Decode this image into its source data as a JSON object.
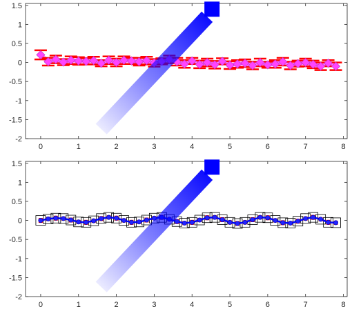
{
  "chart_data": [
    {
      "type": "line",
      "title": "",
      "xlabel": "",
      "ylabel": "",
      "xlim": [
        -0.4,
        8.1
      ],
      "ylim": [
        -2,
        1.55
      ],
      "xticks": [
        0,
        1,
        2,
        3,
        4,
        5,
        6,
        7,
        8
      ],
      "yticks": [
        -2,
        -1.5,
        -1,
        -0.5,
        0,
        0.5,
        1,
        1.5
      ],
      "xtick_labels": [
        "0",
        "1",
        "2",
        "3",
        "4",
        "5",
        "6",
        "7",
        "8"
      ],
      "ytick_labels": [
        "-2",
        "-1.5",
        "-1",
        "-0.5",
        "0",
        "0.5",
        "1",
        "1.5"
      ],
      "grid": false,
      "series": [
        {
          "style": "errorbar with magenta diamond markers",
          "x": [
            0,
            0.2,
            0.4,
            0.6,
            0.8,
            1,
            1.2,
            1.4,
            1.6,
            1.8,
            2,
            2.2,
            2.4,
            2.6,
            2.8,
            3,
            3.2,
            3.4,
            3.6,
            3.8,
            4,
            4.2,
            4.4,
            4.6,
            4.8,
            5,
            5.2,
            5.4,
            5.6,
            5.8,
            6,
            6.2,
            6.4,
            6.6,
            6.8,
            7,
            7.2,
            7.4,
            7.6,
            7.8
          ],
          "y": [
            0.2,
            0.02,
            0.08,
            0.01,
            0.06,
            0.04,
            0.03,
            0.05,
            -0.02,
            0.06,
            0.0,
            0.06,
            0.04,
            0.02,
            0.05,
            -0.01,
            0.03,
            0.08,
            0.02,
            -0.04,
            0.04,
            -0.05,
            0.0,
            -0.06,
            0.03,
            -0.07,
            -0.04,
            -0.02,
            -0.08,
            0.0,
            -0.06,
            -0.04,
            0.02,
            -0.08,
            -0.03,
            0.0,
            -0.05,
            -0.1,
            -0.02,
            -0.1
          ],
          "error": [
            0.12,
            0.1,
            0.1,
            0.08,
            0.1,
            0.1,
            0.08,
            0.1,
            0.08,
            0.1,
            0.1,
            0.1,
            0.08,
            0.1,
            0.1,
            0.1,
            0.08,
            0.1,
            0.1,
            0.1,
            0.08,
            0.1,
            0.1,
            0.1,
            0.08,
            0.1,
            0.1,
            0.1,
            0.1,
            0.1,
            0.08,
            0.1,
            0.1,
            0.1,
            0.08,
            0.1,
            0.1,
            0.1,
            0.08,
            0.1
          ],
          "line_color": "#ff66ff",
          "marker_color": "#ff44ff",
          "error_color": "#ff0000"
        }
      ],
      "annotation": {
        "shape": "arrow",
        "color": "#0000ff",
        "from": [
          1.6,
          -1.75
        ],
        "to": [
          4.4,
          1.2
        ],
        "fade": "gradient from transparent tail to solid square head"
      }
    },
    {
      "type": "line",
      "title": "",
      "xlabel": "",
      "ylabel": "",
      "xlim": [
        -0.4,
        8.1
      ],
      "ylim": [
        -2,
        1.55
      ],
      "xticks": [
        0,
        1,
        2,
        3,
        4,
        5,
        6,
        7,
        8
      ],
      "yticks": [
        -2,
        -1.5,
        -1,
        -0.5,
        0,
        0.5,
        1,
        1.5
      ],
      "xtick_labels": [
        "0",
        "1",
        "2",
        "3",
        "4",
        "5",
        "6",
        "7",
        "8"
      ],
      "ytick_labels": [
        "-2",
        "-1.5",
        "-1",
        "-0.5",
        "0",
        "0.5",
        "1",
        "1.5"
      ],
      "grid": false,
      "series": [
        {
          "style": "blue wavy line with blue circle markers, red error bars and black square outlines",
          "x": [
            0,
            0.2,
            0.4,
            0.6,
            0.8,
            1,
            1.2,
            1.4,
            1.6,
            1.8,
            2,
            2.2,
            2.4,
            2.6,
            2.8,
            3,
            3.2,
            3.4,
            3.6,
            3.8,
            4,
            4.2,
            4.4,
            4.6,
            4.8,
            5,
            5.2,
            5.4,
            5.6,
            5.8,
            6,
            6.2,
            6.4,
            6.6,
            6.8,
            7,
            7.2,
            7.4,
            7.6,
            7.8
          ],
          "y": [
            0.0,
            0.04,
            0.06,
            0.05,
            0.01,
            -0.04,
            -0.05,
            -0.01,
            0.05,
            0.08,
            0.06,
            0.0,
            -0.05,
            -0.04,
            0.01,
            0.06,
            0.08,
            0.03,
            -0.03,
            -0.07,
            -0.05,
            0.01,
            0.07,
            0.08,
            0.02,
            -0.05,
            -0.08,
            -0.05,
            0.02,
            0.08,
            0.07,
            0.0,
            -0.06,
            -0.07,
            -0.02,
            0.05,
            0.08,
            0.03,
            -0.05,
            -0.06
          ],
          "error": [
            0.05,
            0.04,
            0.05,
            0.04,
            0.05,
            0.04,
            0.05,
            0.04,
            0.05,
            0.04,
            0.05,
            0.04,
            0.05,
            0.04,
            0.05,
            0.04,
            0.05,
            0.04,
            0.05,
            0.04,
            0.05,
            0.04,
            0.05,
            0.04,
            0.05,
            0.04,
            0.05,
            0.04,
            0.05,
            0.04,
            0.05,
            0.04,
            0.05,
            0.04,
            0.05,
            0.04,
            0.05,
            0.04,
            0.05,
            0.04
          ],
          "line_color": "#0000ff",
          "marker_color": "#2222ff",
          "error_color": "#ff0000",
          "box_color": "#000000"
        }
      ],
      "annotation": {
        "shape": "arrow",
        "color": "#0000ff",
        "from": [
          1.6,
          -1.75
        ],
        "to": [
          4.4,
          1.2
        ],
        "fade": "gradient from transparent tail to solid square head"
      }
    }
  ]
}
